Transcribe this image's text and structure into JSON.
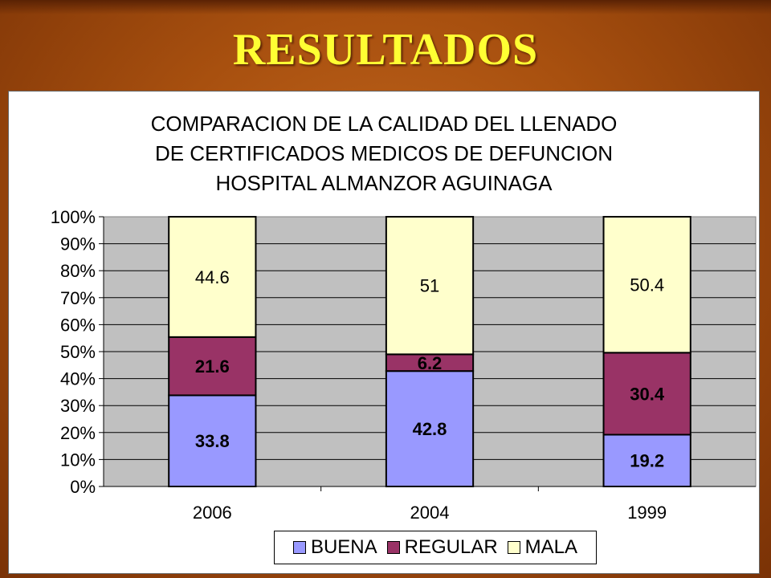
{
  "slide": {
    "title": "RESULTADOS"
  },
  "chart_data": {
    "type": "bar",
    "stacked": true,
    "percent_stacked": true,
    "title_lines": [
      "COMPARACION DE LA CALIDAD DEL LLENADO",
      "DE CERTIFICADOS MEDICOS DE DEFUNCION",
      "HOSPITAL ALMANZOR AGUINAGA"
    ],
    "categories": [
      "2006",
      "2004",
      "1999"
    ],
    "series": [
      {
        "name": "BUENA",
        "values": [
          33.8,
          42.8,
          19.2
        ],
        "labels": [
          "33.8",
          "42.8",
          "19.2"
        ],
        "color": "#9999ff",
        "label_bold": true
      },
      {
        "name": "REGULAR",
        "values": [
          21.6,
          6.2,
          30.4
        ],
        "labels": [
          "21.6",
          "6.2",
          "30.4"
        ],
        "color": "#993366",
        "label_bold": true
      },
      {
        "name": "MALA",
        "values": [
          44.6,
          51,
          50.4
        ],
        "labels": [
          "44.6",
          "51",
          "50.4"
        ],
        "color": "#ffffcc",
        "label_bold": false
      }
    ],
    "y_ticks": [
      "0%",
      "10%",
      "20%",
      "30%",
      "40%",
      "50%",
      "60%",
      "70%",
      "80%",
      "90%",
      "100%"
    ],
    "ylim": [
      0,
      100
    ],
    "grid": true,
    "plot_background": "#c0c0c0",
    "legend_position": "bottom"
  }
}
